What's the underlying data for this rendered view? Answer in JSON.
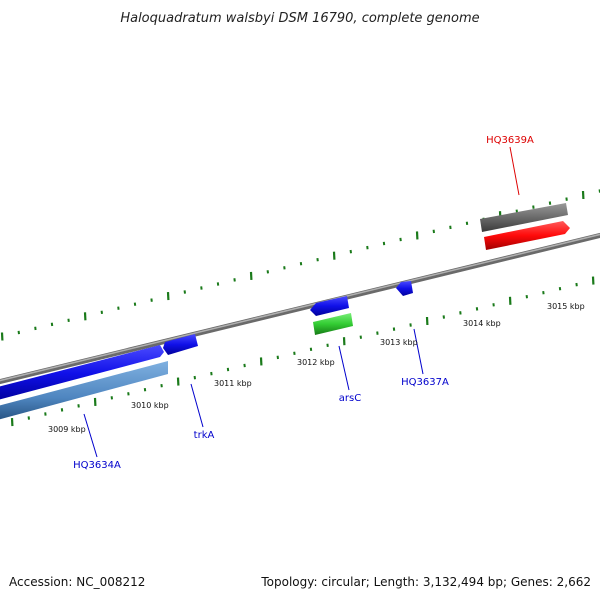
{
  "title": "Haloquadratum walsbyi DSM 16790, complete genome",
  "footer": {
    "accession": "Accession: NC_008212",
    "topology": "Topology: circular; Length: 3,132,494 bp; Genes: 2,662"
  },
  "ticks": [
    {
      "label": "3009 kbp"
    },
    {
      "label": "3010 kbp"
    },
    {
      "label": "3011 kbp"
    },
    {
      "label": "3012 kbp"
    },
    {
      "label": "3013 kbp"
    },
    {
      "label": "3014 kbp"
    },
    {
      "label": "3015 kbp"
    }
  ],
  "genes": [
    {
      "label": "HQ3634A",
      "color": "#0000cc"
    },
    {
      "label": "trkA",
      "color": "#0000cc"
    },
    {
      "label": "arsC",
      "color": "#0000cc"
    },
    {
      "label": "HQ3637A",
      "color": "#0000cc"
    },
    {
      "label": "HQ3639A",
      "color": "#dd0000"
    }
  ],
  "colors": {
    "backbone": "#8a8a8a",
    "tick": "#1a7a1a",
    "forward_gene": "#1a1aee",
    "forward_rna": "#5b8fc7",
    "reverse_gene": "#ff1a1a",
    "pseudo_gene": "#6e6e6e",
    "green_gene": "#33cc33"
  }
}
